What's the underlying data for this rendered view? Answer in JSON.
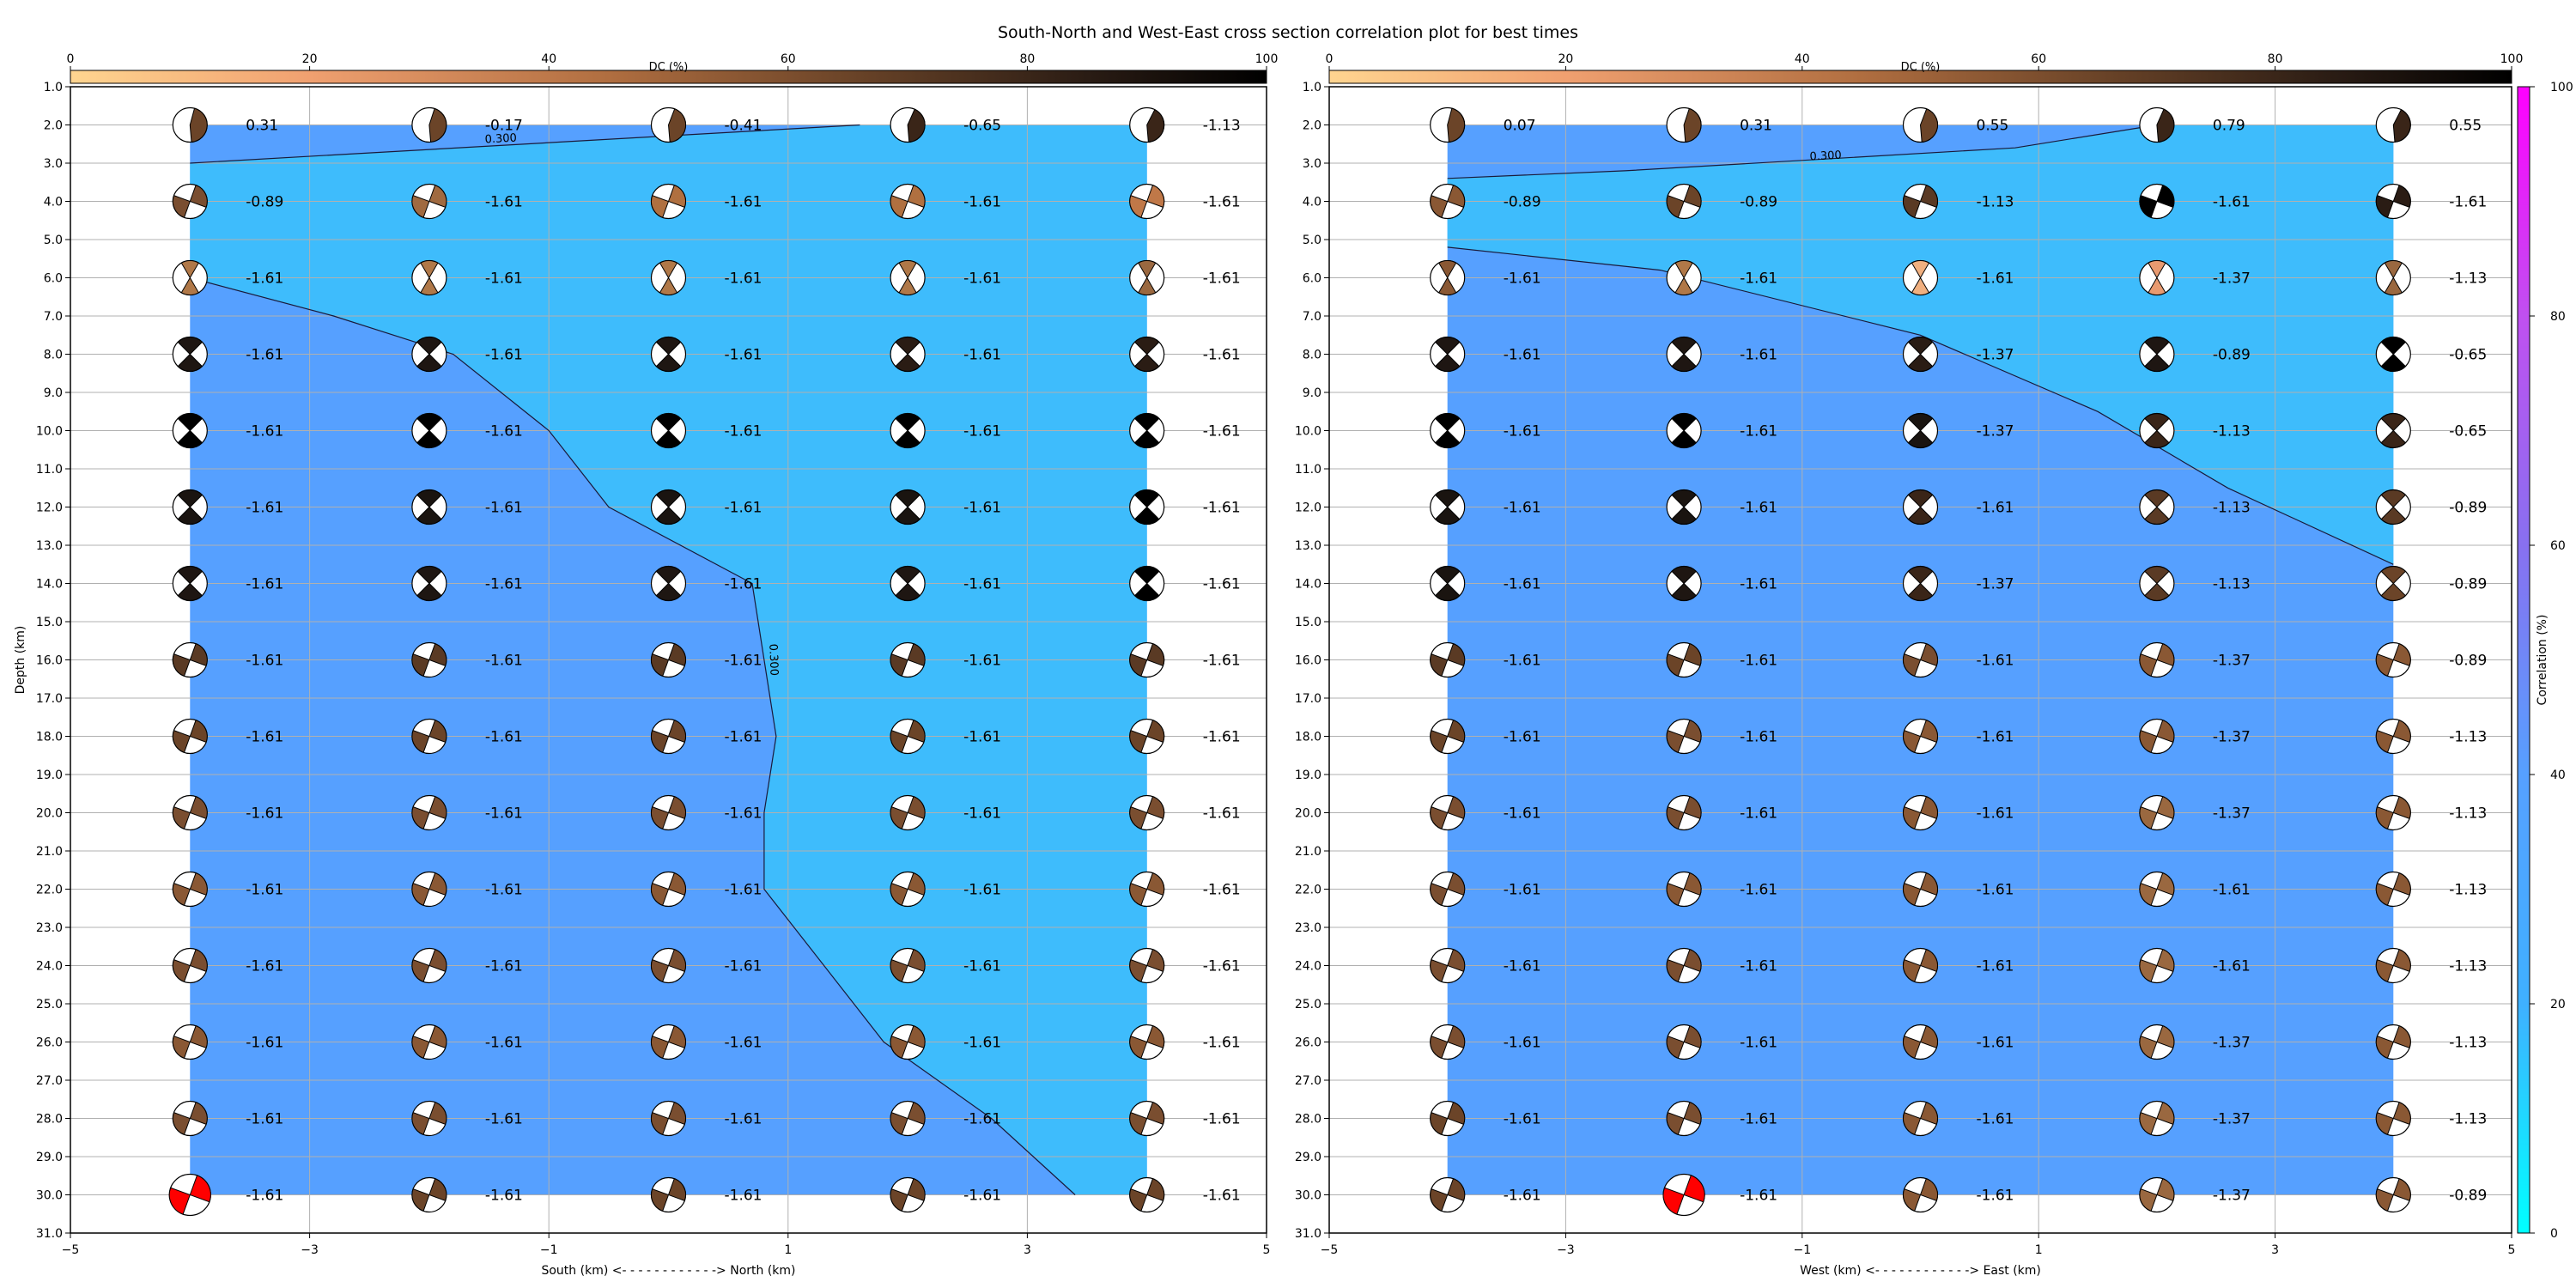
{
  "title": "South-North and West-East cross section correlation plot for best times",
  "dc_colorbar": {
    "label": "DC (%)",
    "ticks": [
      0,
      20,
      40,
      60,
      80,
      100
    ],
    "colors": [
      "#ffd590",
      "#f0a070",
      "#b06e40",
      "#6b4428",
      "#2a1c14",
      "#000000"
    ]
  },
  "corr_colorbar": {
    "label": "Correlation (%)",
    "ticks": [
      0,
      20,
      40,
      60,
      80,
      100
    ],
    "colors": [
      "#00ffff",
      "#3fb0ff",
      "#56a0ff",
      "#8870f0",
      "#c050f0",
      "#ff00ff"
    ]
  },
  "contour_label": "0.300",
  "depth_ticks": [
    "1.0",
    "2.0",
    "3.0",
    "4.0",
    "5.0",
    "6.0",
    "7.0",
    "8.0",
    "9.0",
    "10.0",
    "11.0",
    "12.0",
    "13.0",
    "14.0",
    "15.0",
    "16.0",
    "17.0",
    "18.0",
    "19.0",
    "20.0",
    "21.0",
    "22.0",
    "23.0",
    "24.0",
    "25.0",
    "26.0",
    "27.0",
    "28.0",
    "29.0",
    "30.0",
    "31.0"
  ],
  "x_ticks": [
    "−5",
    "−3",
    "−1",
    "1",
    "3",
    "5"
  ],
  "chart_data": [
    {
      "type": "heatmap",
      "panel": "south-north",
      "title": "South-North and West-East cross section correlation plot for best times",
      "xlabel": "South (km) <- - - - - - - - - - - -> North (km)",
      "ylabel": "Depth (km)",
      "xlim": [
        -5,
        5
      ],
      "ylim": [
        31,
        1
      ],
      "grid": true,
      "contour_level": 0.3,
      "contour_line": [
        [
          -4,
          3
        ],
        [
          1.6,
          2
        ],
        null,
        [
          -4,
          6
        ],
        [
          -2.8,
          7
        ],
        [
          -1.8,
          8
        ],
        [
          -1.0,
          10
        ],
        [
          -0.5,
          12
        ],
        [
          0.7,
          14
        ],
        [
          0.8,
          16
        ],
        [
          0.9,
          18
        ],
        [
          0.8,
          20
        ],
        [
          0.8,
          22
        ],
        [
          1.3,
          24
        ],
        [
          1.8,
          26
        ],
        [
          2.7,
          28
        ],
        [
          3.4,
          30
        ]
      ],
      "x": [
        -4,
        -2,
        0,
        2,
        4
      ],
      "depths": [
        2,
        4,
        6,
        8,
        10,
        12,
        14,
        16,
        18,
        20,
        22,
        24,
        26,
        28,
        30
      ],
      "labels": [
        [
          "0.31",
          "-0.17",
          "-0.41",
          "-0.65",
          "-1.13"
        ],
        [
          "-0.89",
          "-1.61",
          "-1.61",
          "-1.61",
          "-1.61"
        ],
        [
          "-1.61",
          "-1.61",
          "-1.61",
          "-1.61",
          "-1.61"
        ],
        [
          "-1.61",
          "-1.61",
          "-1.61",
          "-1.61",
          "-1.61"
        ],
        [
          "-1.61",
          "-1.61",
          "-1.61",
          "-1.61",
          "-1.61"
        ],
        [
          "-1.61",
          "-1.61",
          "-1.61",
          "-1.61",
          "-1.61"
        ],
        [
          "-1.61",
          "-1.61",
          "-1.61",
          "-1.61",
          "-1.61"
        ],
        [
          "-1.61",
          "-1.61",
          "-1.61",
          "-1.61",
          "-1.61"
        ],
        [
          "-1.61",
          "-1.61",
          "-1.61",
          "-1.61",
          "-1.61"
        ],
        [
          "-1.61",
          "-1.61",
          "-1.61",
          "-1.61",
          "-1.61"
        ],
        [
          "-1.61",
          "-1.61",
          "-1.61",
          "-1.61",
          "-1.61"
        ],
        [
          "-1.61",
          "-1.61",
          "-1.61",
          "-1.61",
          "-1.61"
        ],
        [
          "-1.61",
          "-1.61",
          "-1.61",
          "-1.61",
          "-1.61"
        ],
        [
          "-1.61",
          "-1.61",
          "-1.61",
          "-1.61",
          "-1.61"
        ],
        [
          "-1.61",
          "-1.61",
          "-1.61",
          "-1.61",
          "-1.61"
        ]
      ],
      "beachball_colors": [
        [
          "#6b4428",
          "#6b4428",
          "#6b4428",
          "#3a2518",
          "#3a2518"
        ],
        [
          "#7a4e30",
          "#a06a40",
          "#b07040",
          "#b07040",
          "#c07848"
        ],
        [
          "#b07848",
          "#b07848",
          "#b07848",
          "#b07848",
          "#9a6840"
        ],
        [
          "#1e1612",
          "#1e1612",
          "#1e1612",
          "#2a1c14",
          "#2a1c14"
        ],
        [
          "#000000",
          "#000000",
          "#000000",
          "#000000",
          "#000000"
        ],
        [
          "#1a1410",
          "#1a1410",
          "#1a1410",
          "#1a1410",
          "#000000"
        ],
        [
          "#1e1612",
          "#1e1612",
          "#1e1612",
          "#1e1612",
          "#000000"
        ],
        [
          "#5a3a24",
          "#5a3a24",
          "#5a3a24",
          "#5a3a24",
          "#5a3a24"
        ],
        [
          "#6b4428",
          "#6b4428",
          "#6b4428",
          "#6b4428",
          "#6b4428"
        ],
        [
          "#7a4e30",
          "#7a4e30",
          "#7a4e30",
          "#7a4e30",
          "#7a4e30"
        ],
        [
          "#8a5834",
          "#8a5834",
          "#8a5834",
          "#8a5834",
          "#8a5834"
        ],
        [
          "#7a4e30",
          "#7a4e30",
          "#7a4e30",
          "#7a4e30",
          "#7a4e30"
        ],
        [
          "#8a5834",
          "#8a5834",
          "#8a5834",
          "#8a5834",
          "#8a5834"
        ],
        [
          "#7a4e30",
          "#7a4e30",
          "#7a4e30",
          "#7a4e30",
          "#7a4e30"
        ],
        [
          "#ff0000",
          "#6b4428",
          "#6b4428",
          "#6b4428",
          "#6b4428"
        ]
      ]
    },
    {
      "type": "heatmap",
      "panel": "west-east",
      "xlabel": "West (km) <- - - - - - - - - - - -> East (km)",
      "ylabel": "",
      "xlim": [
        -5,
        5
      ],
      "ylim": [
        31,
        1
      ],
      "grid": true,
      "contour_level": 0.3,
      "contour_line": [
        [
          -4,
          3.4
        ],
        [
          -2.5,
          3.2
        ],
        [
          0.8,
          2.6
        ],
        [
          2,
          2
        ],
        null,
        [
          -4,
          5.2
        ],
        [
          -2.2,
          5.8
        ],
        [
          0,
          7.5
        ],
        [
          1.5,
          9.5
        ],
        [
          2.6,
          11.5
        ],
        [
          4,
          13.5
        ]
      ],
      "x": [
        -4,
        -2,
        0,
        2,
        4
      ],
      "depths": [
        2,
        4,
        6,
        8,
        10,
        12,
        14,
        16,
        18,
        20,
        22,
        24,
        26,
        28,
        30
      ],
      "labels": [
        [
          "0.07",
          "0.31",
          "0.55",
          "0.79",
          "0.55"
        ],
        [
          "-0.89",
          "-0.89",
          "-1.13",
          "-1.61",
          "-1.61"
        ],
        [
          "-1.61",
          "-1.61",
          "-1.61",
          "-1.37",
          "-1.13"
        ],
        [
          "-1.61",
          "-1.61",
          "-1.37",
          "-0.89",
          "-0.65"
        ],
        [
          "-1.61",
          "-1.61",
          "-1.37",
          "-1.13",
          "-0.65"
        ],
        [
          "-1.61",
          "-1.61",
          "-1.61",
          "-1.13",
          "-0.89"
        ],
        [
          "-1.61",
          "-1.61",
          "-1.37",
          "-1.13",
          "-0.89"
        ],
        [
          "-1.61",
          "-1.61",
          "-1.61",
          "-1.37",
          "-0.89"
        ],
        [
          "-1.61",
          "-1.61",
          "-1.61",
          "-1.37",
          "-1.13"
        ],
        [
          "-1.61",
          "-1.61",
          "-1.61",
          "-1.37",
          "-1.13"
        ],
        [
          "-1.61",
          "-1.61",
          "-1.61",
          "-1.61",
          "-1.13"
        ],
        [
          "-1.61",
          "-1.61",
          "-1.61",
          "-1.61",
          "-1.13"
        ],
        [
          "-1.61",
          "-1.61",
          "-1.61",
          "-1.37",
          "-1.13"
        ],
        [
          "-1.61",
          "-1.61",
          "-1.61",
          "-1.37",
          "-1.13"
        ],
        [
          "-1.61",
          "-1.61",
          "-1.61",
          "-1.37",
          "-0.89"
        ]
      ],
      "beachball_colors": [
        [
          "#6b4428",
          "#6b4428",
          "#6b4428",
          "#3a2518",
          "#3a2518"
        ],
        [
          "#8a5834",
          "#6b4428",
          "#5a3a24",
          "#000000",
          "#2a1c14"
        ],
        [
          "#8a5834",
          "#b07848",
          "#f0b080",
          "#e89a70",
          "#9a6840"
        ],
        [
          "#1e1612",
          "#1e1612",
          "#2a1c14",
          "#1e1612",
          "#000000"
        ],
        [
          "#000000",
          "#000000",
          "#1a1410",
          "#3a2518",
          "#3a2518"
        ],
        [
          "#1a1410",
          "#1a1410",
          "#3a2518",
          "#5a3a24",
          "#5a3a24"
        ],
        [
          "#1a1410",
          "#1e1612",
          "#3a2518",
          "#5a3a24",
          "#6b4428"
        ],
        [
          "#5a3a24",
          "#6b4428",
          "#7a4e30",
          "#8a5834",
          "#8a5834"
        ],
        [
          "#6b4428",
          "#7a4e30",
          "#8a5834",
          "#8a5834",
          "#8a5834"
        ],
        [
          "#7a4e30",
          "#7a4e30",
          "#8a5834",
          "#9a6840",
          "#8a5834"
        ],
        [
          "#7a4e30",
          "#8a5834",
          "#8a5834",
          "#9a6840",
          "#8a5834"
        ],
        [
          "#7a4e30",
          "#7a4e30",
          "#8a5834",
          "#9a6840",
          "#8a5834"
        ],
        [
          "#7a4e30",
          "#7a4e30",
          "#8a5834",
          "#9a6840",
          "#8a5834"
        ],
        [
          "#6b4428",
          "#7a4e30",
          "#8a5834",
          "#9a6840",
          "#8a5834"
        ],
        [
          "#6b4428",
          "#ff0000",
          "#8a5834",
          "#9a6840",
          "#8a5834"
        ]
      ]
    }
  ]
}
